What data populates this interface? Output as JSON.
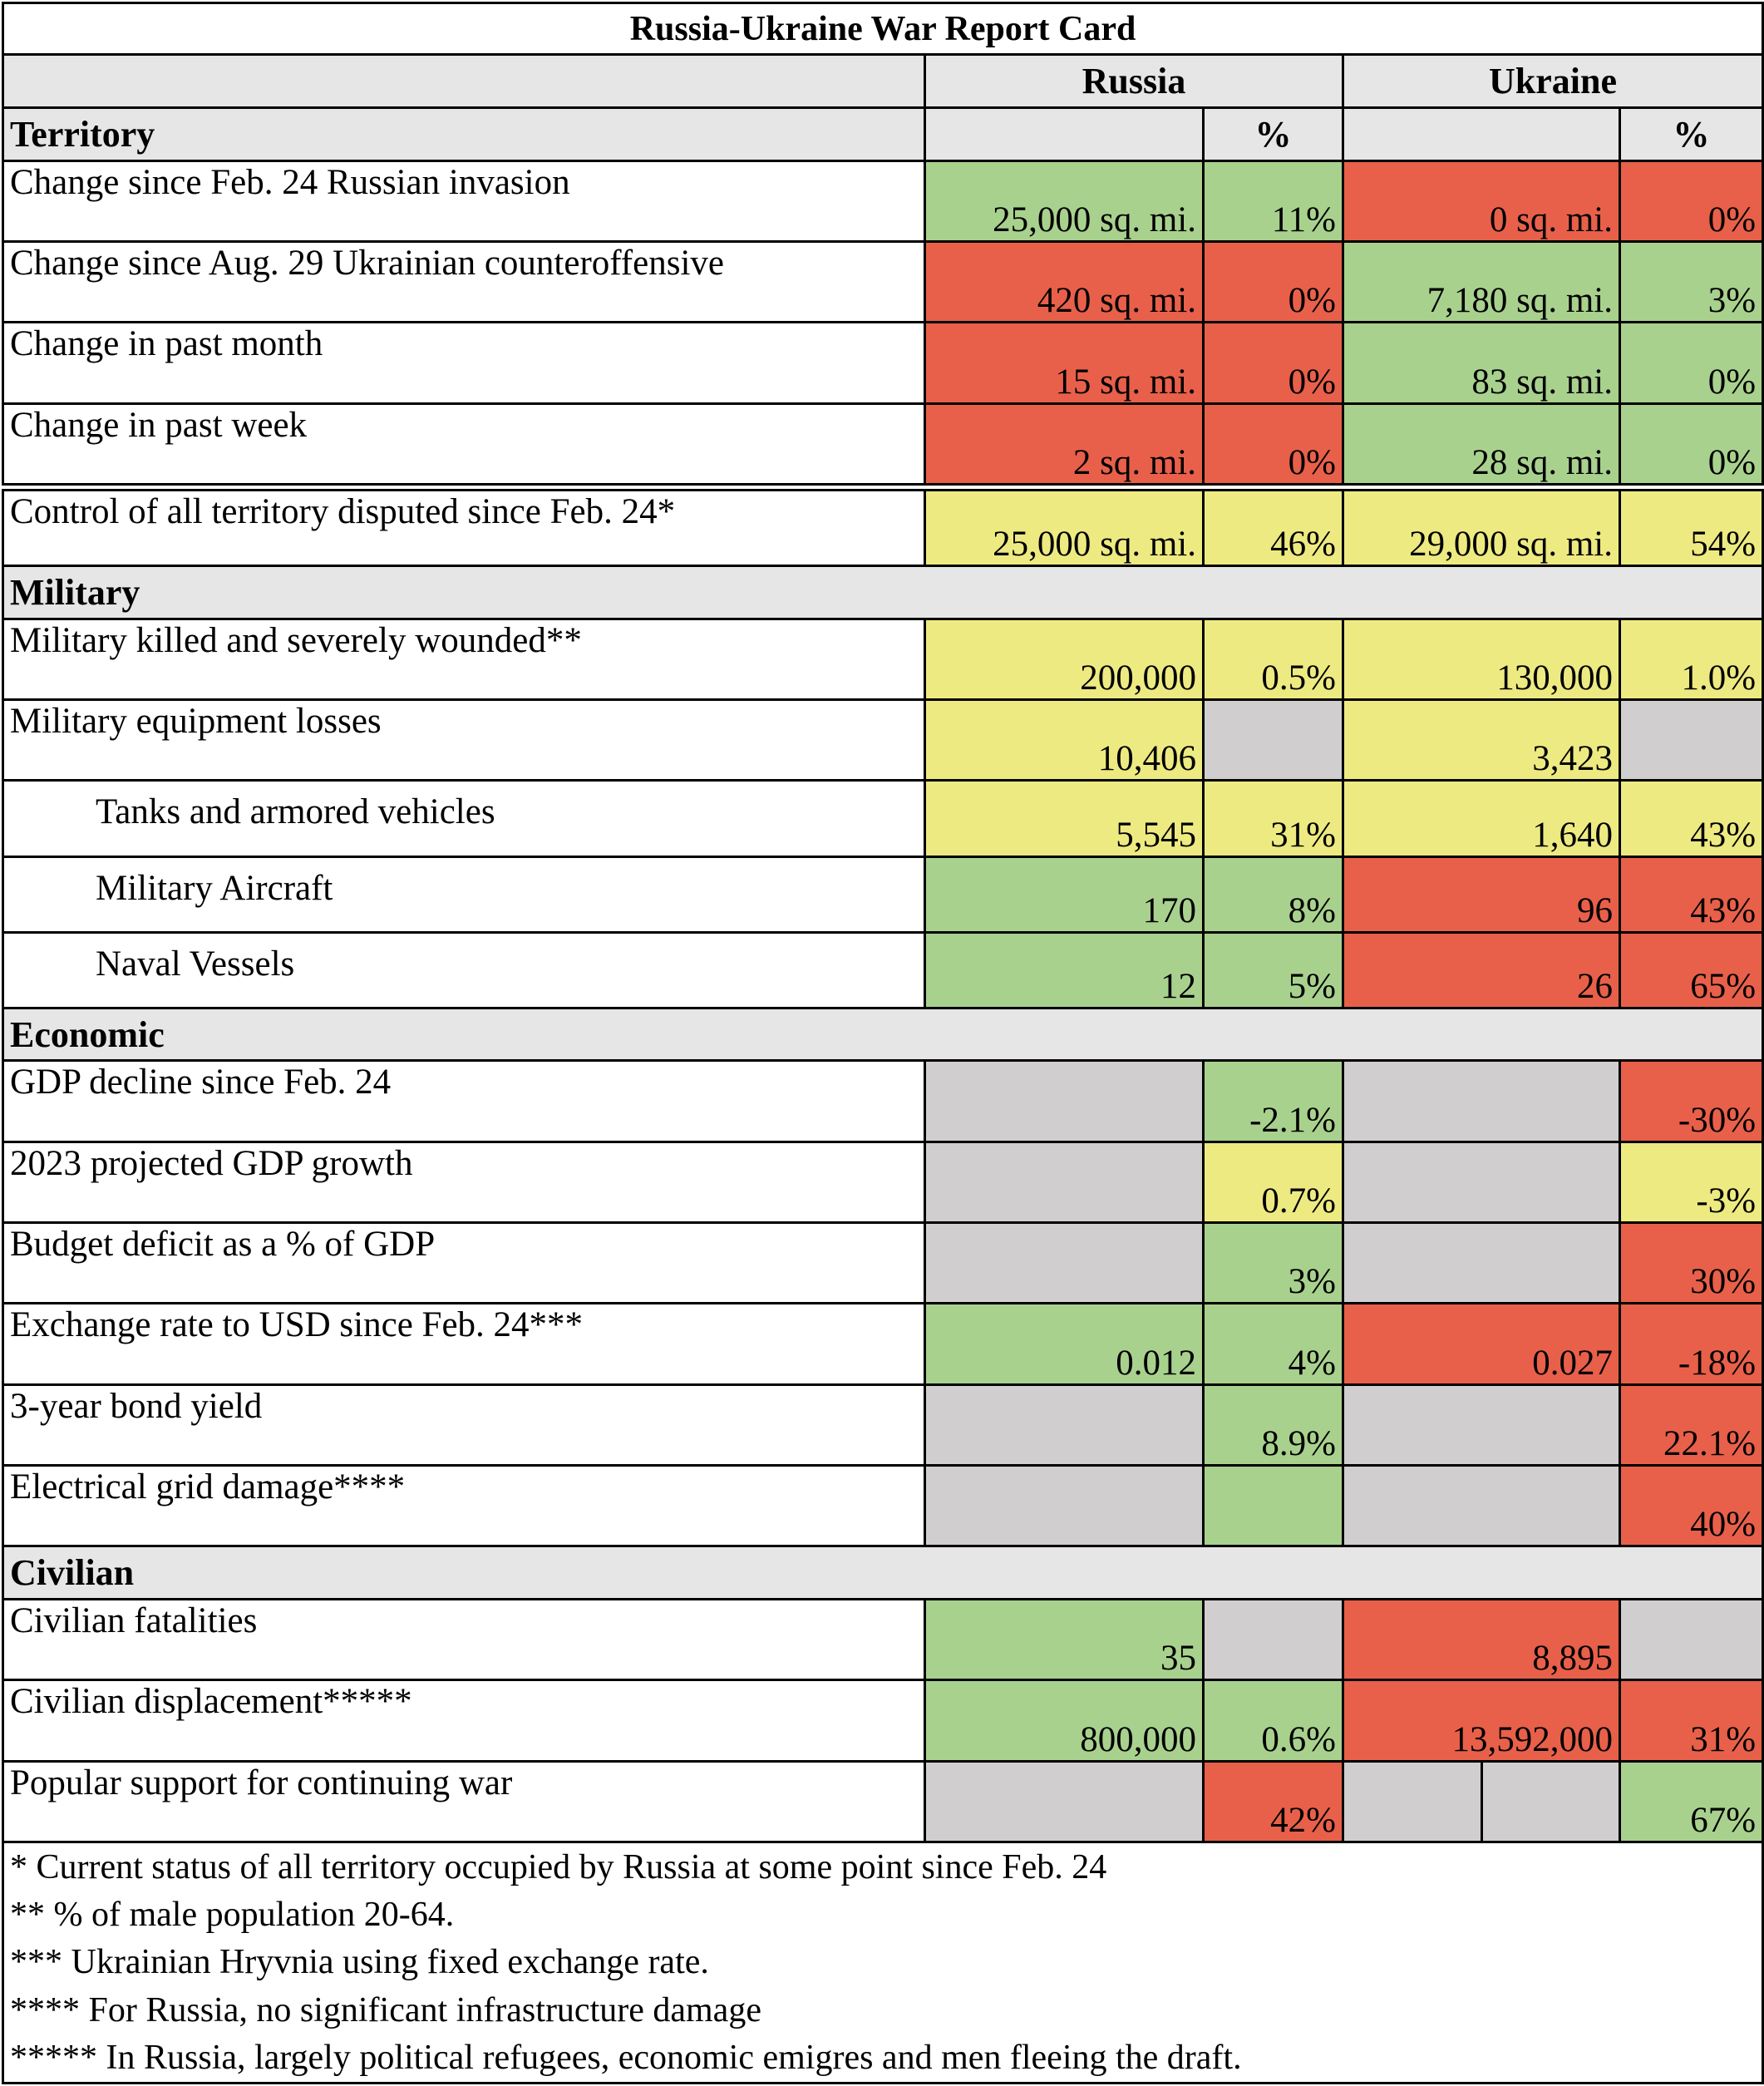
{
  "title": "Russia-Ukraine War Report Card",
  "columns": {
    "russia": "Russia",
    "ukraine": "Ukraine",
    "pct": "%"
  },
  "sections": {
    "territory": "Territory",
    "military": "Military",
    "economic": "Economic",
    "civilian": "Civilian"
  },
  "colors": {
    "green": "#a9d18e",
    "red": "#e8604a",
    "yellow": "#eeea82",
    "gray": "#d0cece",
    "header_gray": "#e6e6e6"
  },
  "territory_rows": [
    {
      "label": "Change since Feb. 24 Russian invasion",
      "ru": "25,000 sq. mi.",
      "ru_pct": "11%",
      "ua": "0 sq. mi.",
      "ua_pct": "0%"
    },
    {
      "label": "Change since Aug. 29 Ukrainian counteroffensive",
      "ru": "420 sq. mi.",
      "ru_pct": "0%",
      "ua": "7,180 sq. mi.",
      "ua_pct": "3%"
    },
    {
      "label": "Change in past month",
      "ru": "15 sq. mi.",
      "ru_pct": "0%",
      "ua": "83 sq. mi.",
      "ua_pct": "0%"
    },
    {
      "label": "Change in past week",
      "ru": "2 sq. mi.",
      "ru_pct": "0%",
      "ua": "28 sq. mi.",
      "ua_pct": "0%"
    },
    {
      "label": "Control of all territory disputed since Feb. 24*",
      "ru": "25,000 sq. mi.",
      "ru_pct": "46%",
      "ua": "29,000 sq. mi.",
      "ua_pct": "54%"
    }
  ],
  "military_rows": [
    {
      "label": "Military killed and severely wounded**",
      "ru": "200,000",
      "ru_pct": "0.5%",
      "ua": "130,000",
      "ua_pct": "1.0%"
    },
    {
      "label": "Military equipment losses",
      "ru": "10,406",
      "ru_pct": "",
      "ua": "3,423",
      "ua_pct": ""
    },
    {
      "label": "Tanks and armored vehicles",
      "ru": "5,545",
      "ru_pct": "31%",
      "ua": "1,640",
      "ua_pct": "43%"
    },
    {
      "label": "Military Aircraft",
      "ru": "170",
      "ru_pct": "8%",
      "ua": "96",
      "ua_pct": "43%"
    },
    {
      "label": "Naval Vessels",
      "ru": "12",
      "ru_pct": "5%",
      "ua": "26",
      "ua_pct": "65%"
    }
  ],
  "economic_rows": [
    {
      "label": "GDP decline since Feb. 24",
      "ru": "",
      "ru_pct": "-2.1%",
      "ua": "",
      "ua_pct": "-30%"
    },
    {
      "label": "2023 projected GDP growth",
      "ru": "",
      "ru_pct": "0.7%",
      "ua": "",
      "ua_pct": "-3%"
    },
    {
      "label": "Budget deficit as a % of GDP",
      "ru": "",
      "ru_pct": "3%",
      "ua": "",
      "ua_pct": "30%"
    },
    {
      "label": "Exchange rate to USD since Feb. 24***",
      "ru": "0.012",
      "ru_pct": "4%",
      "ua": "0.027",
      "ua_pct": "-18%"
    },
    {
      "label": "3-year bond yield",
      "ru": "",
      "ru_pct": "8.9%",
      "ua": "",
      "ua_pct": "22.1%"
    },
    {
      "label": "Electrical grid damage****",
      "ru": "",
      "ru_pct": "",
      "ua": "",
      "ua_pct": "40%"
    }
  ],
  "civilian_rows": [
    {
      "label": "Civilian fatalities",
      "ru": "35",
      "ru_pct": "",
      "ua": "8,895",
      "ua_pct": ""
    },
    {
      "label": "Civilian displacement*****",
      "ru": "800,000",
      "ru_pct": "0.6%",
      "ua": "13,592,000",
      "ua_pct": "31%"
    },
    {
      "label": "Popular support for continuing war",
      "ru": "",
      "ru_pct": "42%",
      "ua": "",
      "ua_pct": "67%"
    }
  ],
  "footnotes": [
    "* Current status of all territory occupied by Russia at some point since Feb. 24",
    "** % of male population 20-64.",
    "*** Ukrainian Hryvnia using fixed exchange rate.",
    "**** For Russia, no significant infrastructure damage",
    "***** In Russia, largely political refugees, economic emigres and men fleeing the draft."
  ]
}
